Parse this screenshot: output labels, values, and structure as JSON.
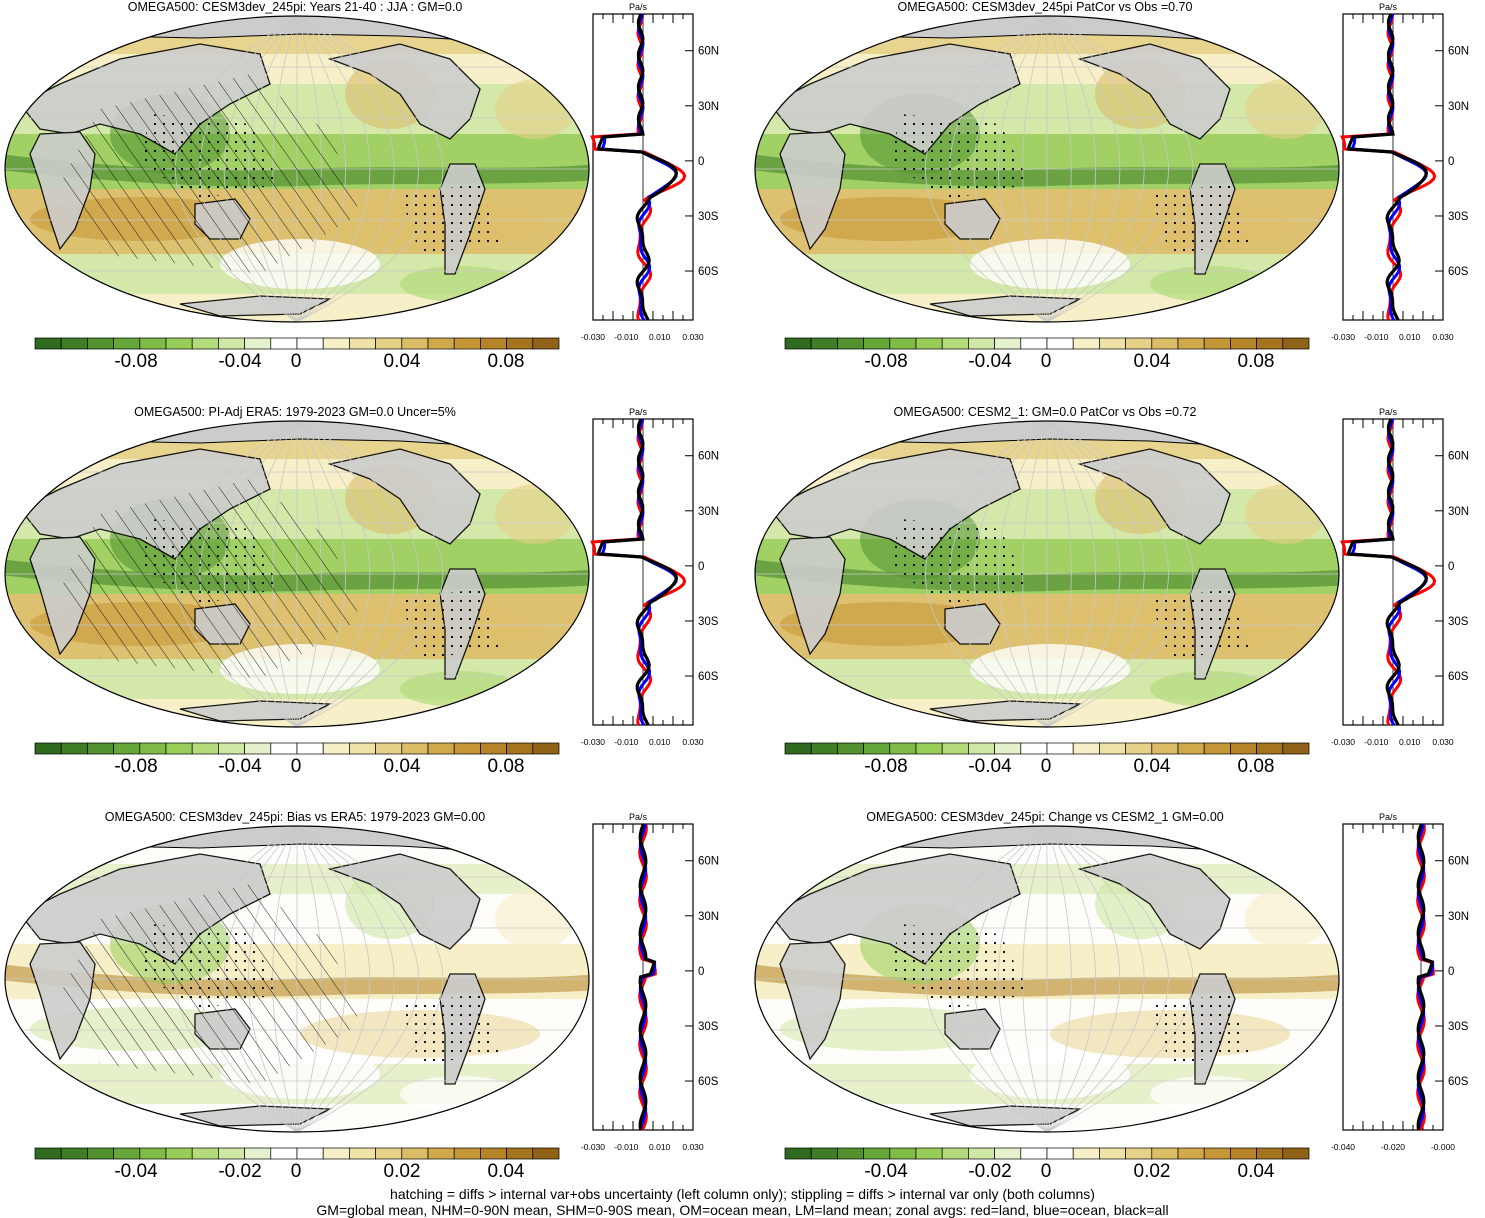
{
  "panels": [
    {
      "title": "OMEGA500: CESM3dev_245pi: Years 21-40  : JJA : GM=0.0",
      "cbar_labels": [
        "-0.08",
        "-0.04",
        "0",
        "0.04",
        "0.08"
      ],
      "zonal_unit": "Pa/s",
      "zonal_ticks": [
        "-0.030",
        "-0.010",
        "0.010",
        "0.030"
      ],
      "lat_labels": [
        "60N",
        "30N",
        "0",
        "30S",
        "60S"
      ]
    },
    {
      "title": "OMEGA500: CESM3dev_245pi PatCor vs Obs =0.70",
      "cbar_labels": [
        "-0.08",
        "-0.04",
        "0",
        "0.04",
        "0.08"
      ],
      "zonal_unit": "Pa/s",
      "zonal_ticks": [
        "-0.030",
        "-0.010",
        "0.010",
        "0.030"
      ],
      "lat_labels": [
        "60N",
        "30N",
        "0",
        "30S",
        "60S"
      ]
    },
    {
      "title": "OMEGA500: PI-Adj ERA5: 1979-2023 GM=0.0 Uncer=5%",
      "cbar_labels": [
        "-0.08",
        "-0.04",
        "0",
        "0.04",
        "0.08"
      ],
      "zonal_unit": "Pa/s",
      "zonal_ticks": [
        "-0.030",
        "-0.010",
        "0.010",
        "0.030"
      ],
      "lat_labels": [
        "60N",
        "30N",
        "0",
        "30S",
        "60S"
      ]
    },
    {
      "title": "OMEGA500: CESM2_1: GM=0.0 PatCor vs Obs =0.72",
      "cbar_labels": [
        "-0.08",
        "-0.04",
        "0",
        "0.04",
        "0.08"
      ],
      "zonal_unit": "Pa/s",
      "zonal_ticks": [
        "-0.030",
        "-0.010",
        "0.010",
        "0.030"
      ],
      "lat_labels": [
        "60N",
        "30N",
        "0",
        "30S",
        "60S"
      ]
    },
    {
      "title": "OMEGA500: CESM3dev_245pi: Bias vs ERA5: 1979-2023 GM=0.00",
      "cbar_labels": [
        "-0.04",
        "-0.02",
        "0",
        "0.02",
        "0.04"
      ],
      "zonal_unit": "Pa/s",
      "zonal_ticks": [
        "-0.030",
        "-0.010",
        "0.010",
        "0.030"
      ],
      "lat_labels": [
        "60N",
        "30N",
        "0",
        "30S",
        "60S"
      ]
    },
    {
      "title": "OMEGA500: CESM3dev_245pi: Change vs CESM2_1 GM=0.00",
      "cbar_labels": [
        "-0.04",
        "-0.02",
        "0",
        "0.02",
        "0.04"
      ],
      "zonal_unit": "Pa/s",
      "zonal_ticks": [
        "-0.040",
        "-0.020",
        "-0.000"
      ],
      "lat_labels": [
        "60N",
        "30N",
        "0",
        "30S",
        "60S"
      ]
    }
  ],
  "colors": {
    "cbar": [
      "#2f6b1f",
      "#3f7d27",
      "#51922f",
      "#66a73a",
      "#7fbb47",
      "#98cd5a",
      "#b4dc7c",
      "#cfe8a6",
      "#e4f1cc",
      "#ffffff",
      "#ffffff",
      "#f6efc8",
      "#efe2a6",
      "#e6d188",
      "#dcbd67",
      "#d1a94b",
      "#c49635",
      "#b58428",
      "#a5741f",
      "#8f6218"
    ],
    "land": "#cccccc",
    "zonal_land": "#ff0000",
    "zonal_ocean": "#0000ff",
    "zonal_all": "#000000"
  },
  "footer": {
    "line1": "hatching = diffs > internal var+obs uncertainty (left column only); stippling = diffs > internal var only (both columns)",
    "line2": "GM=global mean, NHM=0-90N mean, SHM=0-90S mean, OM=ocean mean, LM=land mean; zonal avgs: red=land, blue=ocean, black=all"
  }
}
